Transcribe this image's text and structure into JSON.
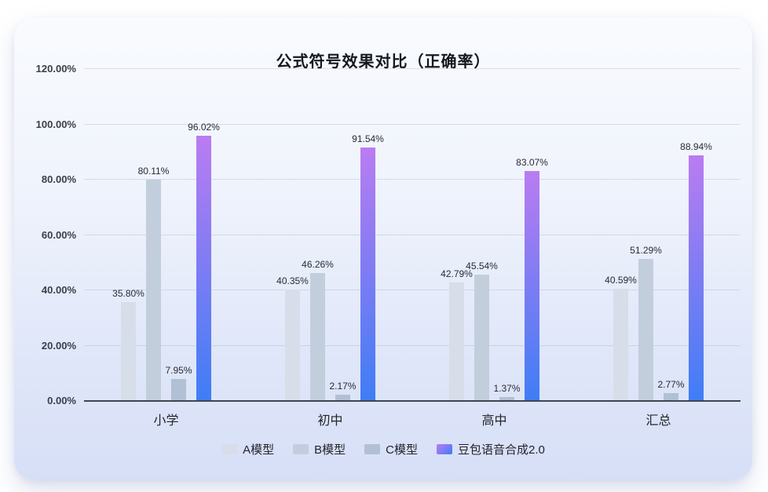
{
  "card": {
    "bg_top": "#f9fbfe",
    "bg_bottom": "#d7dff7"
  },
  "chart_data": {
    "type": "bar",
    "title": "公式符号效果对比（正确率）",
    "categories": [
      "小学",
      "初中",
      "高中",
      "汇总"
    ],
    "series": [
      {
        "name": "A模型",
        "color": "#d7deea",
        "values": [
          35.8,
          40.35,
          42.79,
          40.59
        ]
      },
      {
        "name": "B模型",
        "color": "#c3cedd",
        "values": [
          80.11,
          46.26,
          45.54,
          51.29
        ]
      },
      {
        "name": "C模型",
        "color": "#b1c0d4",
        "values": [
          7.95,
          2.17,
          1.37,
          2.77
        ]
      },
      {
        "name": "豆包语音合成2.0",
        "color": "#8d84f3",
        "gradient": [
          "#ba7cf1",
          "#3f7df6"
        ],
        "values": [
          96.02,
          91.54,
          83.07,
          88.94
        ]
      }
    ],
    "value_label_format": "percent-2dp",
    "ylim": [
      0,
      120
    ],
    "ytick_step": 20,
    "ytick_labels": [
      "0.00%",
      "20.00%",
      "40.00%",
      "60.00%",
      "80.00%",
      "100.00%",
      "120.00%"
    ],
    "grid": true,
    "legend_position": "bottom",
    "axis_line_color": "#3f4552"
  }
}
